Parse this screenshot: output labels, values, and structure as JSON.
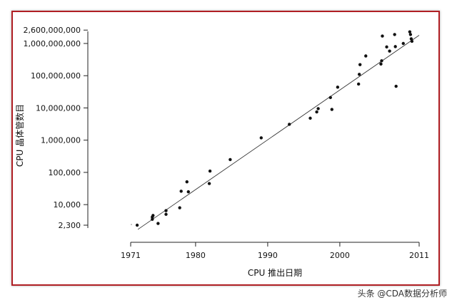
{
  "watermark": "头条 @CDA数据分析师",
  "chart_data": {
    "type": "scatter",
    "xlabel": "CPU 推出日期",
    "ylabel": "CPU 晶体管数目",
    "x_ticks": [
      1971,
      1980,
      1990,
      2000,
      2011
    ],
    "y_ticks": [
      {
        "value": 2300,
        "label": "2,300"
      },
      {
        "value": 10000,
        "label": "10,000"
      },
      {
        "value": 100000,
        "label": "100,000"
      },
      {
        "value": 1000000,
        "label": "1,000,000"
      },
      {
        "value": 10000000,
        "label": "10,000,000"
      },
      {
        "value": 100000000,
        "label": "100,000,000"
      },
      {
        "value": 1000000000,
        "label": "1,000,000,000"
      },
      {
        "value": 2600000000,
        "label": "2,600,000,000"
      }
    ],
    "xlim": [
      1971,
      2011
    ],
    "ylim": [
      1700,
      3000000000
    ],
    "y_scale": "log",
    "grid": false,
    "trend_line": {
      "x": [
        1972,
        2011
      ],
      "y": [
        1700,
        1800000000
      ]
    },
    "points": [
      {
        "x": 1971.9,
        "y": 2300
      },
      {
        "x": 1974.0,
        "y": 3500
      },
      {
        "x": 1974.0,
        "y": 4100
      },
      {
        "x": 1974.1,
        "y": 4600
      },
      {
        "x": 1974.8,
        "y": 2600
      },
      {
        "x": 1975.9,
        "y": 5000
      },
      {
        "x": 1975.9,
        "y": 6500
      },
      {
        "x": 1977.8,
        "y": 8000
      },
      {
        "x": 1978.0,
        "y": 26000
      },
      {
        "x": 1978.8,
        "y": 51000
      },
      {
        "x": 1979.0,
        "y": 25000
      },
      {
        "x": 1981.9,
        "y": 45000
      },
      {
        "x": 1982.0,
        "y": 110000
      },
      {
        "x": 1984.8,
        "y": 250000
      },
      {
        "x": 1989.1,
        "y": 1180000
      },
      {
        "x": 1993.0,
        "y": 3100000
      },
      {
        "x": 1995.9,
        "y": 4800000
      },
      {
        "x": 1996.8,
        "y": 7500000
      },
      {
        "x": 1997.0,
        "y": 9500000
      },
      {
        "x": 1998.7,
        "y": 21000000
      },
      {
        "x": 1998.9,
        "y": 9000000
      },
      {
        "x": 1999.7,
        "y": 44000000
      },
      {
        "x": 2002.6,
        "y": 55000000
      },
      {
        "x": 2002.7,
        "y": 110000000
      },
      {
        "x": 2002.8,
        "y": 220000000
      },
      {
        "x": 2003.6,
        "y": 410000000
      },
      {
        "x": 2005.7,
        "y": 230000000
      },
      {
        "x": 2005.8,
        "y": 290000000
      },
      {
        "x": 2005.9,
        "y": 1700000000
      },
      {
        "x": 2006.5,
        "y": 780000000
      },
      {
        "x": 2006.9,
        "y": 580000000
      },
      {
        "x": 2007.6,
        "y": 1900000000
      },
      {
        "x": 2007.7,
        "y": 800000000
      },
      {
        "x": 2007.8,
        "y": 47000000
      },
      {
        "x": 2008.8,
        "y": 1000000000
      },
      {
        "x": 2009.7,
        "y": 2300000000
      },
      {
        "x": 2009.8,
        "y": 1900000000
      },
      {
        "x": 2009.9,
        "y": 1400000000
      },
      {
        "x": 2010.0,
        "y": 1170000000
      }
    ]
  }
}
